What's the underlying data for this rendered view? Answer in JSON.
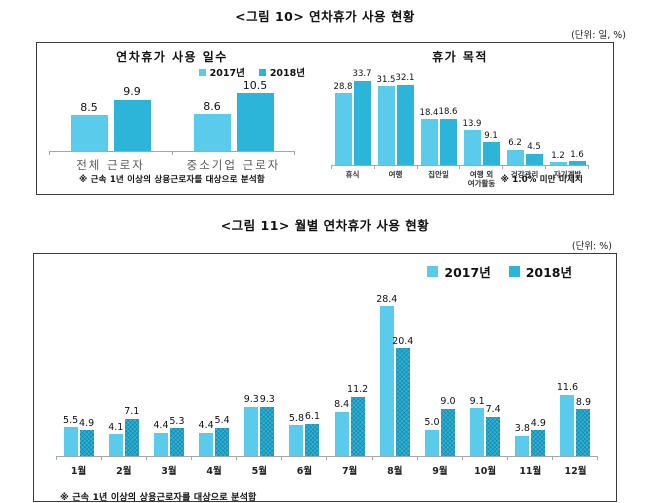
{
  "colors": {
    "y2017": "#5BCBEB",
    "y2018": "#2CB5D8",
    "axis": "#A6A6A6"
  },
  "figure10": {
    "title": "<그림 10> 연차휴가 사용 현황",
    "unit": "(단위: 일, %)",
    "legend": {
      "y2017": "2017년",
      "y2018": "2018년"
    },
    "days": {
      "subtitle": "연차휴가 사용 일수",
      "footnote": "※ 근속 1년 이상의 상용근로자를 대상으로 분석함"
    },
    "purpose": {
      "subtitle": "휴가 목적",
      "footnote": "※ 1.0% 미만 미제시"
    }
  },
  "figure11": {
    "title": "<그림 11> 월별 연차휴가 사용 현황",
    "unit": "(단위: %)",
    "legend": {
      "y2017": "2017년",
      "y2018": "2018년"
    },
    "footnote": "※ 근속 1년 이상의 상용근로자를 대상으로 분석함"
  },
  "chart_data": [
    {
      "type": "bar",
      "title": "연차휴가 사용 일수",
      "unit": "일",
      "categories": [
        "전체 근로자",
        "중소기업 근로자"
      ],
      "series": [
        {
          "name": "2017년",
          "values": [
            8.5,
            8.6
          ]
        },
        {
          "name": "2018년",
          "values": [
            9.9,
            10.5
          ]
        }
      ],
      "legend_position": "top-right",
      "grid": false,
      "footnote": "※ 근속 1년 이상의 상용근로자를 대상으로 분석함"
    },
    {
      "type": "bar",
      "title": "휴가 목적",
      "unit": "%",
      "categories": [
        "휴식",
        "여행",
        "집안일",
        "여행 외\n여가활동",
        "건강관리",
        "자기계발"
      ],
      "series": [
        {
          "name": "2017년",
          "values": [
            28.8,
            31.5,
            18.4,
            13.9,
            6.2,
            1.2
          ]
        },
        {
          "name": "2018년",
          "values": [
            33.7,
            32.1,
            18.6,
            9.1,
            4.5,
            1.6
          ]
        }
      ],
      "grid": false,
      "footnote": "※ 1.0% 미만 미제시"
    },
    {
      "type": "bar",
      "title": "<그림 11> 월별 연차휴가 사용 현황",
      "unit": "%",
      "categories": [
        "1월",
        "2월",
        "3월",
        "4월",
        "5월",
        "6월",
        "7월",
        "8월",
        "9월",
        "10월",
        "11월",
        "12월"
      ],
      "series": [
        {
          "name": "2017년",
          "values": [
            5.5,
            4.1,
            4.4,
            4.4,
            9.3,
            5.8,
            8.4,
            28.4,
            5.0,
            9.1,
            3.8,
            11.6
          ]
        },
        {
          "name": "2018년",
          "values": [
            4.9,
            7.1,
            5.3,
            5.4,
            9.3,
            6.1,
            11.2,
            20.4,
            9.0,
            7.4,
            4.9,
            8.9
          ]
        }
      ],
      "legend_position": "top-right",
      "grid": false,
      "ylim": [
        0,
        30
      ],
      "footnote": "※ 근속 1년 이상의 상용근로자를 대상으로 분석함"
    }
  ]
}
